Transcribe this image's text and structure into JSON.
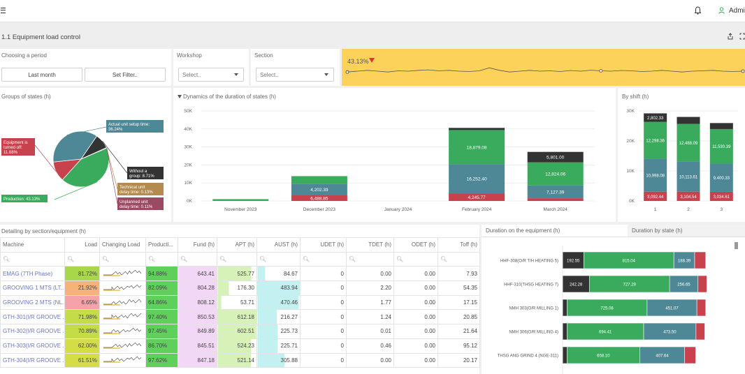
{
  "header": {
    "menu_icon": "hamburger-icon",
    "bell_icon": "bell-icon",
    "user_icon": "user-icon",
    "user": "Admi"
  },
  "page": {
    "title": "1.1 Equipment load control",
    "share_icon": "share-icon",
    "expand_icon": "expand-icon"
  },
  "filters": {
    "period_label": "Choosing a period",
    "last_month": "Last month",
    "set_filter": "Set Filter..",
    "workshop_label": "Workshop",
    "workshop_placeholder": "Select..",
    "section_label": "Section",
    "section_placeholder": "Select.."
  },
  "kpi": {
    "value": "43.13%",
    "trend": "down",
    "color": "#fcd25b",
    "sparkline": [
      0.55,
      0.5,
      0.45,
      0.5,
      0.55,
      0.48,
      0.5,
      0.45,
      0.42,
      0.48,
      0.45,
      0.5,
      0.52,
      0.48,
      0.3,
      0.45,
      0.55,
      0.5,
      0.45,
      0.5,
      0.48,
      0.52,
      0.46,
      0.5,
      0.44,
      0.48,
      0.5,
      0.46,
      0.48,
      0.52,
      0.5,
      0.45,
      0.5,
      0.55,
      0.5,
      0.48,
      0.45,
      0.5,
      0.52,
      0.5
    ]
  },
  "groups_title": "Groups of states (h)",
  "dynamics_title": "Dynamics of the duration of states (h)",
  "shift_title": "By shift (h)",
  "pie": {
    "slices": [
      {
        "label": "Production: 43.13%",
        "value": 43.13,
        "color": "#3aaa5c"
      },
      {
        "label": "Equipment is turned off: 11.68%",
        "value": 11.68,
        "color": "#c8424d"
      },
      {
        "label": "Actual unit setup time: 36.24%",
        "value": 36.24,
        "color": "#4e8896"
      },
      {
        "label": "Without a group: 8.71%",
        "value": 8.71,
        "color": "#333333"
      },
      {
        "label": "Technical unit delay time: 0.13%",
        "value": 0.13,
        "color": "#b48a4e"
      },
      {
        "label": "Unplanned unit delay time: 0.11%",
        "value": 0.11,
        "color": "#9b4a64"
      }
    ]
  },
  "chart_data": [
    {
      "type": "bar",
      "title": "Dynamics of the duration of states (h)",
      "categories": [
        "November 2023",
        "December 2023",
        "January 2024",
        "February 2024",
        "March 2024"
      ],
      "ylim": [
        0,
        50000
      ],
      "yticks": [
        "0K",
        "10K",
        "20K",
        "30K",
        "40K",
        "50K"
      ],
      "series": [
        {
          "color": "#c8424d",
          "values": [
            0,
            3100,
            0,
            4245.77,
            1500
          ]
        },
        {
          "color": "#4e8896",
          "values": [
            0,
            6488.85,
            0,
            16252.4,
            7127.39
          ]
        },
        {
          "color": "#3aaa5c",
          "values": [
            1000,
            4202.39,
            0,
            18879.08,
            12824.06
          ]
        },
        {
          "color": "#333333",
          "values": [
            0,
            0,
            0,
            1200,
            5801
          ]
        }
      ],
      "data_labels": {
        "December 2023": [
          "6,488.85",
          "4,202.39"
        ],
        "February 2024": [
          "4,245.77",
          "16,252.40",
          "18,879.08"
        ],
        "March 2024": [
          "7,127.39",
          "12,824.06",
          "5,801.00"
        ]
      }
    },
    {
      "type": "bar",
      "title": "By shift (h)",
      "categories": [
        "1",
        "2",
        "3"
      ],
      "ylim": [
        0,
        30000
      ],
      "yticks": [
        "0K",
        "10K",
        "20K",
        "30K"
      ],
      "series": [
        {
          "color": "#c8424d",
          "values": [
            3092.44,
            3104.54,
            3034.61
          ],
          "labels": [
            "3,092.44",
            "3,104.54",
            "3,034.61"
          ]
        },
        {
          "color": "#4e8896",
          "values": [
            10998.08,
            10113.61,
            9400.33
          ],
          "labels": [
            "10,998.08",
            "10,113.61",
            "9,400.33"
          ]
        },
        {
          "color": "#3aaa5c",
          "values": [
            12298.36,
            12488.09,
            11530.39
          ],
          "labels": [
            "12,298.36",
            "12,488.09",
            "11,530.39"
          ]
        },
        {
          "color": "#333333",
          "values": [
            2802.33,
            2300,
            2000
          ],
          "labels": [
            "2,802.33",
            "",
            ""
          ]
        }
      ]
    },
    {
      "type": "bar",
      "title": "Duration on the equipment (h)",
      "categories": [
        "HHF-308(O/R T/H HEATING 5)",
        "HHF-310(THSG HEATING 7)",
        "NMH 303(O/R MILLING 1)",
        "NMH 306(O/R MILLING 4)",
        "THSG ANG GRIND 4 (NGE-311)"
      ],
      "series": [
        {
          "color": "#333333",
          "values": [
            192.55,
            242.28,
            40,
            40,
            40
          ],
          "labels": [
            "192.55",
            "242.28",
            "",
            "",
            ""
          ]
        },
        {
          "color": "#3aaa5c",
          "values": [
            815.04,
            727.29,
            725.08,
            694.41,
            658.1
          ],
          "labels": [
            "815.04",
            "727.29",
            "725.08",
            "694.41",
            "658.10"
          ]
        },
        {
          "color": "#4e8896",
          "values": [
            188.39,
            256.65,
            451.07,
            473.5,
            407.64
          ],
          "labels": [
            "188.39",
            "256.65",
            "451.07",
            "473.50",
            "407.64"
          ]
        },
        {
          "color": "#c8424d",
          "values": [
            100,
            80,
            80,
            80,
            100
          ],
          "labels": [
            "",
            "",
            "",
            "",
            ""
          ]
        }
      ]
    }
  ],
  "table": {
    "title": "Detailing by section/equipment (h)",
    "columns": [
      "Machine",
      "Load",
      "Changing Load",
      "Producti...",
      "Fund (h)",
      "APT (h)",
      "AUST (h)",
      "UDET (h)",
      "TDET (h)",
      "ODET (h)",
      "Toff (h)"
    ],
    "rows": [
      {
        "name": "EMAG (7TH Phase)",
        "load": "81.72%",
        "load_color": "#a8d84a",
        "prod": "94.88%",
        "fund": "643.41",
        "apt": "525.77",
        "apt_frac": 0.86,
        "aust": "84.67",
        "aust_frac": 0.18,
        "udet": "0",
        "tdet": "0.00",
        "odet": "0.00",
        "toff": "7.93"
      },
      {
        "name": "GROOVING 1 MTS (LT...",
        "load": "21.92%",
        "load_color": "#f7b27a",
        "prod": "82.09%",
        "fund": "804.28",
        "apt": "176.30",
        "apt_frac": 0.29,
        "aust": "483.94",
        "aust_frac": 1.0,
        "udet": "0",
        "tdet": "2.20",
        "odet": "0.00",
        "toff": "54.35"
      },
      {
        "name": "GROOVING 2 MTS (NL...",
        "load": "6.65%",
        "load_color": "#f5a3a8",
        "prod": "64.86%",
        "fund": "808.12",
        "apt": "53.71",
        "apt_frac": 0.09,
        "aust": "470.46",
        "aust_frac": 0.97,
        "udet": "0",
        "tdet": "1.77",
        "odet": "0.00",
        "toff": "17.15"
      },
      {
        "name": "GTH-301(I/R GROOVE ...",
        "load": "71.98%",
        "load_color": "#c3dc47",
        "prod": "97.40%",
        "fund": "850.53",
        "apt": "612.18",
        "apt_frac": 1.0,
        "aust": "216.27",
        "aust_frac": 0.45,
        "udet": "0",
        "tdet": "1.24",
        "odet": "0.00",
        "toff": "20.85"
      },
      {
        "name": "GTH-302(I/R GROOVE ...",
        "load": "70.89%",
        "load_color": "#c3dc47",
        "prod": "97.45%",
        "fund": "849.89",
        "apt": "602.51",
        "apt_frac": 0.98,
        "aust": "225.73",
        "aust_frac": 0.47,
        "udet": "0",
        "tdet": "0.01",
        "odet": "0.00",
        "toff": "21.64"
      },
      {
        "name": "GTH-303(I/R GROOVE ...",
        "load": "62.00%",
        "load_color": "#d4dd45",
        "prod": "86.70%",
        "fund": "845.51",
        "apt": "524.23",
        "apt_frac": 0.86,
        "aust": "225.71",
        "aust_frac": 0.47,
        "udet": "0",
        "tdet": "0.46",
        "odet": "0.00",
        "toff": "95.12"
      },
      {
        "name": "GTH-304(I/R GROOVE ...",
        "load": "61.51%",
        "load_color": "#d4dd45",
        "prod": "97.62%",
        "fund": "847.18",
        "apt": "521.14",
        "apt_frac": 0.85,
        "aust": "305.88",
        "aust_frac": 0.63,
        "udet": "0",
        "tdet": "0.00",
        "odet": "0.00",
        "toff": "20.17"
      }
    ]
  },
  "tabs": {
    "equipment": "Duration on the equipment (h)",
    "state": "Duration by state (h)"
  }
}
